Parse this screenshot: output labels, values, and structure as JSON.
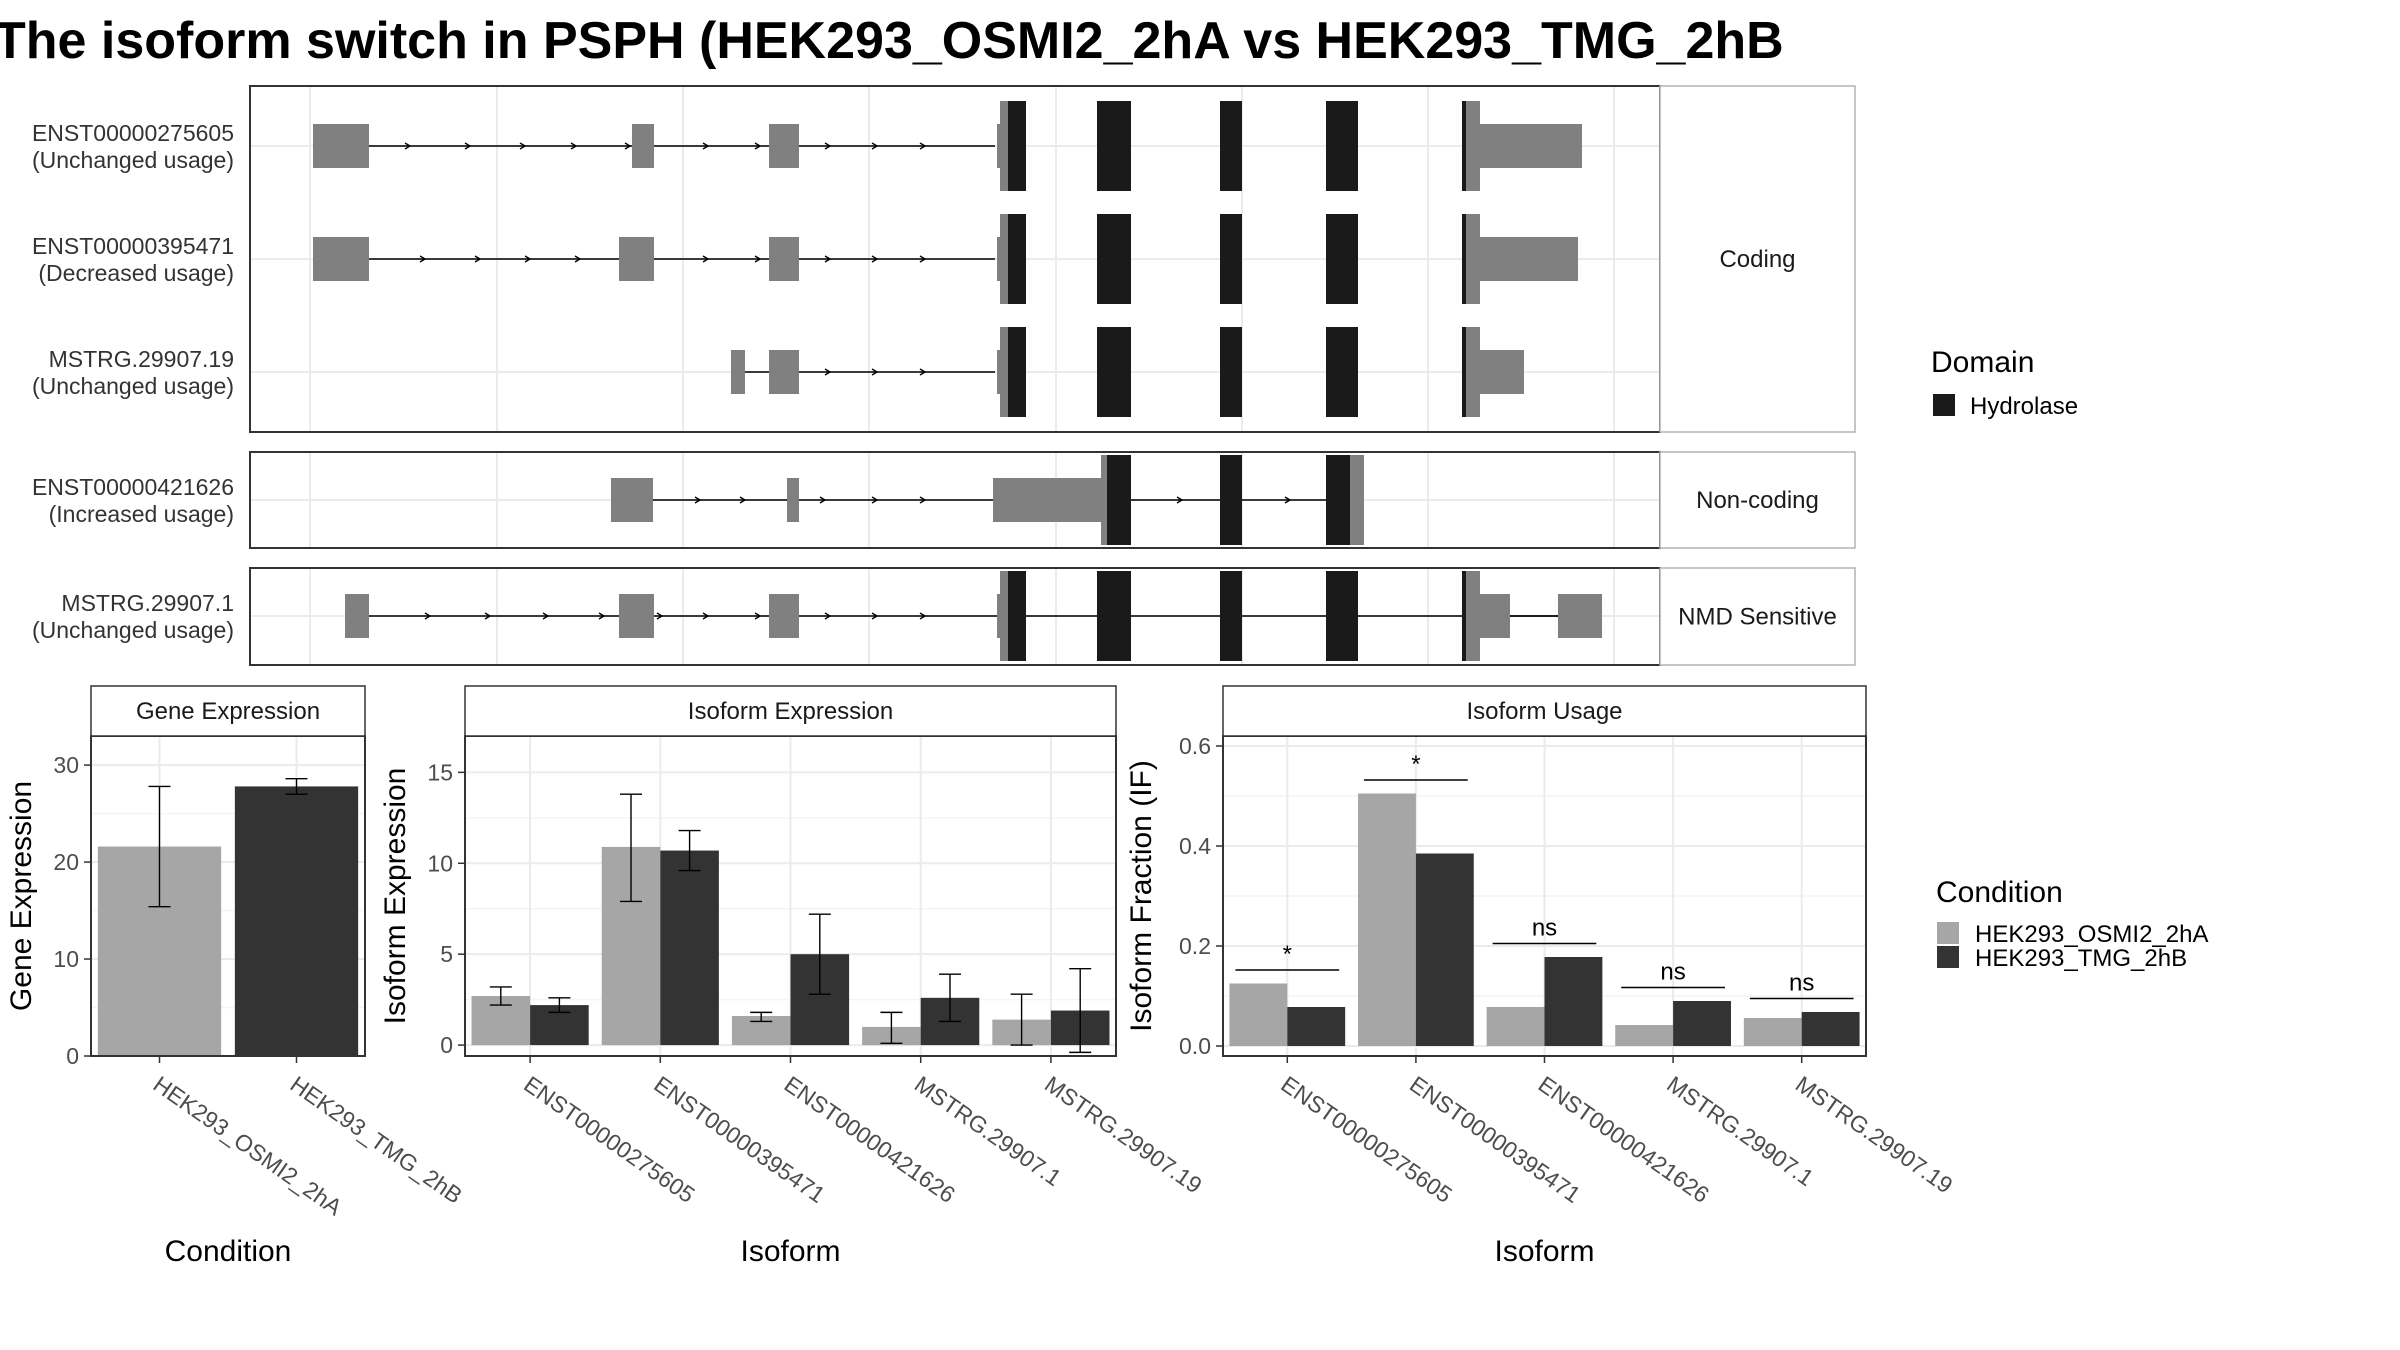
{
  "title": "The isoform switch in PSPH (HEK293_OSMI2_2hA vs HEK293_TMG_2hB",
  "colors": {
    "osmi": "#a6a6a6",
    "tmg": "#333333",
    "exon": "#808080",
    "domain": "#1a1a1a",
    "grid": "#ebebeb",
    "strip_bg": "#ffffff",
    "frame": "#333333"
  },
  "structure": {
    "facets": [
      {
        "label": "Coding",
        "rows": [
          {
            "id": "ENST00000275605",
            "usage": "(Unchanged usage)"
          },
          {
            "id": "ENST00000395471",
            "usage": "(Decreased usage)"
          },
          {
            "id": "MSTRG.29907.19",
            "usage": "(Unchanged usage)"
          }
        ]
      },
      {
        "label": "Non-coding",
        "rows": [
          {
            "id": "ENST00000421626",
            "usage": "(Increased usage)"
          }
        ]
      },
      {
        "label": "NMD Sensitive",
        "rows": [
          {
            "id": "MSTRG.29907.1",
            "usage": "(Unchanged usage)"
          }
        ]
      }
    ]
  },
  "legend_domain": {
    "title": "Domain",
    "items": [
      {
        "label": "Hydrolase",
        "color": "#1a1a1a"
      }
    ]
  },
  "legend_condition": {
    "title": "Condition",
    "items": [
      {
        "label": "HEK293_OSMI2_2hA",
        "color": "#a6a6a6"
      },
      {
        "label": "HEK293_TMG_2hB",
        "color": "#333333"
      }
    ]
  },
  "chart_data": [
    {
      "type": "bar",
      "panel": "Gene Expression",
      "xlabel": "Condition",
      "ylabel": "Gene Expression",
      "ylim": [
        0,
        33
      ],
      "yticks": [
        0,
        10,
        20,
        30
      ],
      "categories": [
        "HEK293_OSMI2_2hA",
        "HEK293_TMG_2hB"
      ],
      "values": [
        21.6,
        27.8
      ],
      "error_low": [
        15.4,
        27.0
      ],
      "error_high": [
        27.8,
        28.6
      ]
    },
    {
      "type": "bar",
      "panel": "Isoform Expression",
      "xlabel": "Isoform",
      "ylabel": "Isoform Expression",
      "ylim": [
        -0.6,
        17.0
      ],
      "yticks": [
        0,
        5,
        10,
        15
      ],
      "categories": [
        "ENST00000275605",
        "ENST00000395471",
        "ENST00000421626",
        "MSTRG.29907.1",
        "MSTRG.29907.19"
      ],
      "series": [
        {
          "name": "HEK293_OSMI2_2hA",
          "values": [
            2.7,
            10.9,
            1.6,
            1.0,
            1.4
          ],
          "error_low": [
            2.2,
            7.9,
            1.3,
            0.1,
            0.0
          ],
          "error_high": [
            3.2,
            13.8,
            1.8,
            1.8,
            2.8
          ]
        },
        {
          "name": "HEK293_TMG_2hB",
          "values": [
            2.2,
            10.7,
            5.0,
            2.6,
            1.9
          ],
          "error_low": [
            1.8,
            9.6,
            2.8,
            1.3,
            -0.4
          ],
          "error_high": [
            2.6,
            11.8,
            7.2,
            3.9,
            4.2
          ]
        }
      ]
    },
    {
      "type": "bar",
      "panel": "Isoform Usage",
      "xlabel": "Isoform",
      "ylabel": "Isoform Fraction (IF)",
      "ylim": [
        -0.02,
        0.62
      ],
      "yticks": [
        0.0,
        0.2,
        0.4,
        0.6
      ],
      "ytick_labels": [
        "0.0",
        "0.2",
        "0.4",
        "0.6"
      ],
      "categories": [
        "ENST00000275605",
        "ENST00000395471",
        "ENST00000421626",
        "MSTRG.29907.1",
        "MSTRG.29907.19"
      ],
      "series": [
        {
          "name": "HEK293_OSMI2_2hA",
          "values": [
            0.125,
            0.505,
            0.078,
            0.042,
            0.056
          ]
        },
        {
          "name": "HEK293_TMG_2hB",
          "values": [
            0.078,
            0.385,
            0.178,
            0.09,
            0.068
          ]
        }
      ],
      "significance": [
        {
          "label": "*",
          "y": 0.152
        },
        {
          "label": "*",
          "y": 0.532
        },
        {
          "label": "ns",
          "y": 0.205
        },
        {
          "label": "ns",
          "y": 0.117
        },
        {
          "label": "ns",
          "y": 0.095
        }
      ]
    }
  ]
}
